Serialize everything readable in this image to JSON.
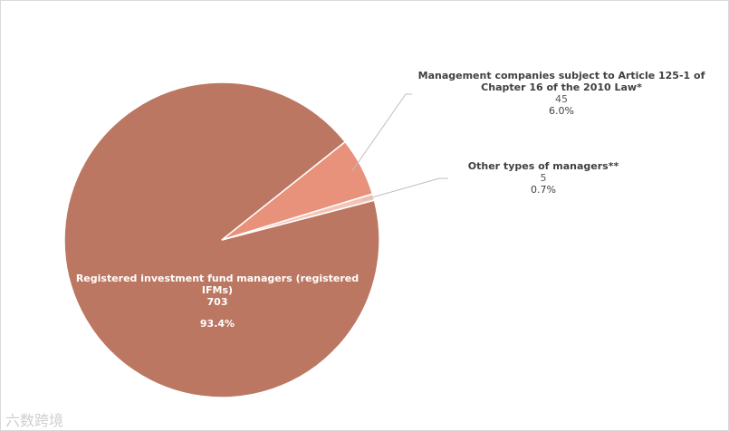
{
  "chart_data": {
    "type": "pie",
    "title": "",
    "slices": [
      {
        "label": "Registered investment fund managers (registered IFMs)",
        "value": 703,
        "percent": "93.4%",
        "color": "#bc7762"
      },
      {
        "label": "Management companies subject to Article 125-1 of Chapter 16 of the 2010 Law*",
        "value": 45,
        "percent": "6.0%",
        "color": "#e8917b"
      },
      {
        "label": "Other types of managers**",
        "value": 5,
        "percent": "0.7%",
        "color": "#f2c4b5"
      }
    ],
    "legend": "none"
  },
  "labels": {
    "rifm": {
      "name": "Registered investment fund managers (registered IFMs)",
      "count": "703",
      "pct": "93.4%"
    },
    "mc": {
      "name": "Management companies subject to Article 125-1 of Chapter 16 of the 2010 Law*",
      "count": "45",
      "pct": "6.0%"
    },
    "other": {
      "name": "Other types of managers**",
      "count": "5",
      "pct": "0.7%"
    }
  },
  "watermark": "六数跨境"
}
